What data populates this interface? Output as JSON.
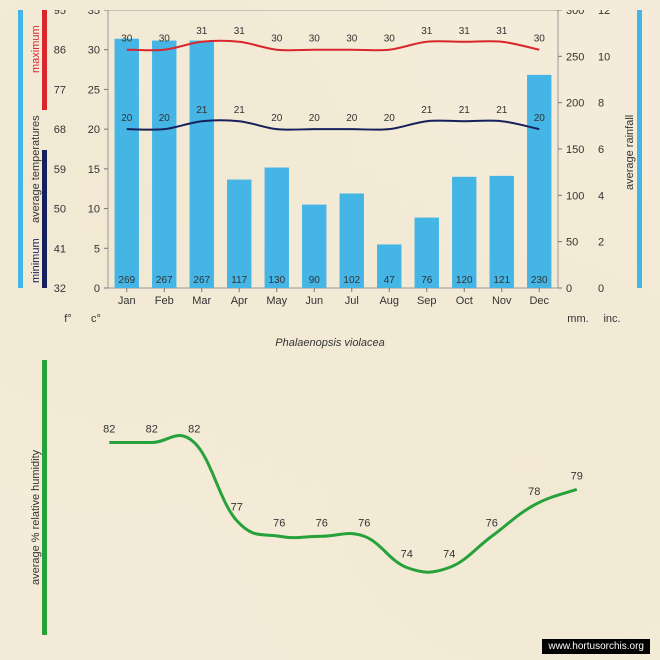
{
  "title": "Phalaenopsis violacea",
  "months": [
    "Jan",
    "Feb",
    "Mar",
    "Apr",
    "May",
    "Jun",
    "Jul",
    "Aug",
    "Sep",
    "Oct",
    "Nov",
    "Dec"
  ],
  "top_chart": {
    "type": "combo-bar-line",
    "bars": {
      "values": [
        269,
        267,
        267,
        117,
        130,
        90,
        102,
        47,
        76,
        120,
        121,
        230
      ],
      "color": "#44b5e5",
      "width": 0.65,
      "label_fontsize": 10,
      "label_color": "#333333"
    },
    "line_max": {
      "values": [
        30,
        30,
        31,
        31,
        30,
        30,
        30,
        30,
        31,
        31,
        31,
        30
      ],
      "color": "#d9262d",
      "width": 2,
      "label_fontsize": 10,
      "label_color": "#333333"
    },
    "line_min": {
      "values": [
        20,
        20,
        21,
        21,
        20,
        20,
        20,
        20,
        21,
        21,
        21,
        20
      ],
      "color": "#16215b",
      "width": 2,
      "label_fontsize": 10,
      "label_color": "#333333"
    },
    "y_left_f": {
      "ticks": [
        32,
        41,
        50,
        59,
        68,
        77,
        86,
        95
      ],
      "label": "f°",
      "color": "#333333"
    },
    "y_left_c": {
      "ticks": [
        0,
        5,
        10,
        15,
        20,
        25,
        30,
        35
      ],
      "label": "c°",
      "color": "#333333"
    },
    "y_right_mm": {
      "ticks": [
        0,
        50,
        100,
        150,
        200,
        250,
        300
      ],
      "label": "mm.",
      "color": "#333333"
    },
    "y_right_in": {
      "ticks": [
        0,
        2,
        4,
        6,
        8,
        10,
        12
      ],
      "label": "inc.",
      "color": "#333333"
    },
    "vert_labels": {
      "minimum": {
        "text": "minimum",
        "color": "#16215b"
      },
      "average_temperatures": {
        "text": "average  temperatures",
        "color": "#333333"
      },
      "maximum": {
        "text": "maximum",
        "color": "#d9262d"
      },
      "average_rainfall": {
        "text": "average rainfall",
        "color": "#333333"
      }
    },
    "bar_left_color": "#16215b",
    "bar_left2_color": "#d9262d",
    "bar_left0_color": "#44b5e5",
    "bar_right_color": "#44b5e5",
    "plot_bg": "#f4ecd8",
    "tick_color": "#777777",
    "border_color": "#999999"
  },
  "bottom_chart": {
    "type": "line",
    "values": [
      82,
      82,
      82,
      77,
      76,
      76,
      76,
      74,
      74,
      76,
      78,
      79
    ],
    "color": "#27a23a",
    "width": 3,
    "label_fontsize": 11,
    "label_color": "#333333",
    "vert_label": {
      "text": "average %  relative humidity",
      "color": "#333333"
    },
    "bar_left_color": "#27a23a",
    "ylim": [
      70,
      86
    ]
  },
  "watermark": "www.hortusorchis.org",
  "colors": {
    "background": "#f4ecd8"
  }
}
